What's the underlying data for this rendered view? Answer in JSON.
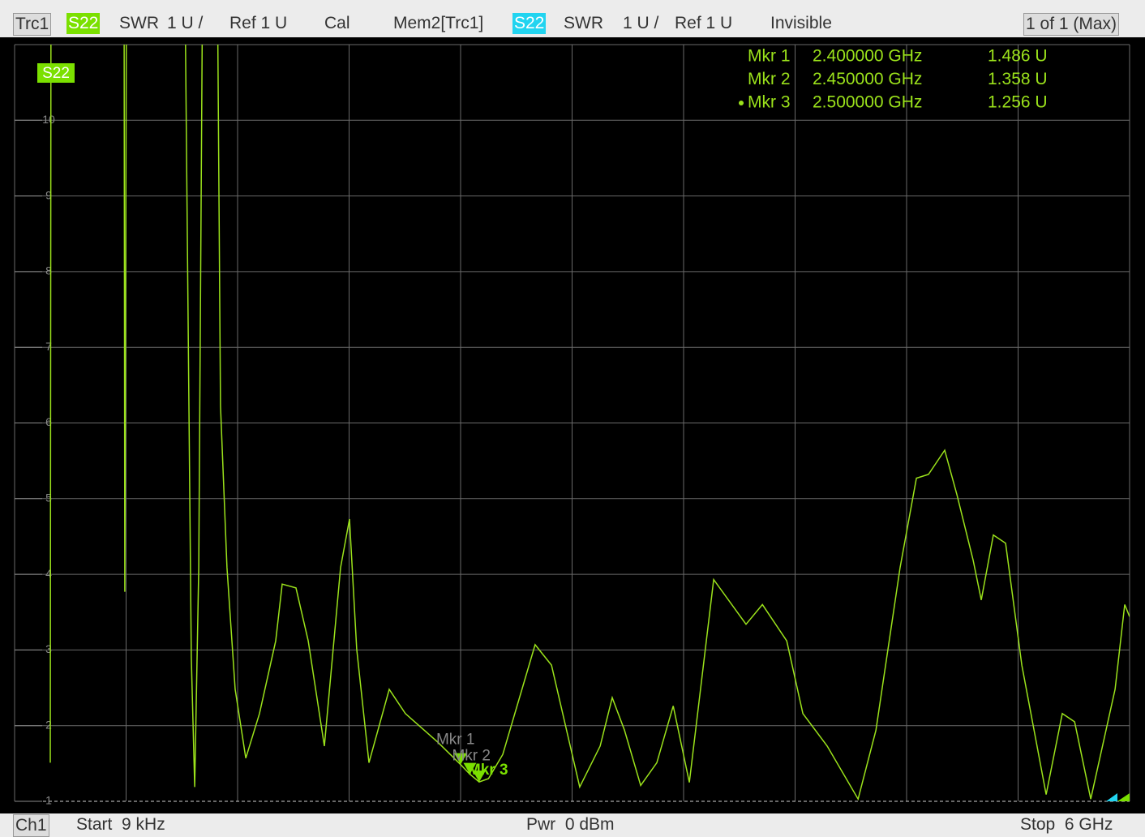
{
  "header": {
    "trace": "Trc1",
    "param": "S22",
    "format": "SWR",
    "scale": "1 U /",
    "ref": "Ref 1 U",
    "cal": "Cal",
    "mem_trace": "Mem2[Trc1]",
    "mem_param": "S22",
    "mem_format": "SWR",
    "mem_scale": "1 U /",
    "mem_ref": "Ref 1 U",
    "mem_state": "Invisible",
    "page": "1 of 1 (Max)"
  },
  "chart_data": {
    "type": "line",
    "x": [
      0.192,
      0.196,
      0.589,
      0.593,
      0.602,
      0.916,
      0.951,
      0.969,
      0.991,
      1.012,
      1.091,
      1.108,
      1.143,
      1.187,
      1.244,
      1.318,
      1.405,
      1.44,
      1.514,
      1.58,
      1.667,
      1.754,
      1.802,
      1.841,
      1.907,
      2.016,
      2.103,
      2.278,
      2.4,
      2.45,
      2.5,
      2.55,
      2.627,
      2.801,
      2.889,
      3.041,
      3.151,
      3.216,
      3.282,
      3.369,
      3.456,
      3.544,
      3.631,
      3.762,
      3.936,
      4.024,
      4.155,
      4.242,
      4.373,
      4.539,
      4.635,
      4.765,
      4.853,
      4.918,
      5.005,
      5.071,
      5.158,
      5.202,
      5.267,
      5.333,
      5.42,
      5.551,
      5.638,
      5.704,
      5.791,
      5.922,
      5.974,
      6.0
    ],
    "series": [
      {
        "name": "S22",
        "color": "#9be21b",
        "values": [
          1.51,
          12,
          12,
          3.77,
          12,
          12,
          2.91,
          1.19,
          4.09,
          12,
          12,
          6.23,
          4.09,
          2.48,
          1.57,
          2.16,
          3.12,
          3.87,
          3.82,
          3.12,
          1.73,
          4.09,
          4.73,
          3.01,
          1.51,
          2.48,
          2.16,
          1.78,
          1.486,
          1.358,
          1.256,
          1.3,
          1.62,
          3.07,
          2.8,
          1.19,
          1.73,
          2.37,
          1.94,
          1.21,
          1.51,
          2.26,
          1.25,
          3.93,
          3.34,
          3.6,
          3.12,
          2.16,
          1.73,
          1.03,
          1.94,
          4.09,
          5.27,
          5.32,
          5.64,
          5.05,
          4.19,
          3.66,
          4.52,
          4.41,
          2.8,
          1.09,
          2.16,
          2.05,
          1.03,
          2.48,
          3.6,
          3.44
        ]
      }
    ],
    "xlim": [
      9e-06,
      6
    ],
    "ylim": [
      1,
      11
    ],
    "yticks": [
      1,
      2,
      3,
      4,
      5,
      6,
      7,
      8,
      9,
      10
    ],
    "grid": true,
    "markers": [
      {
        "name": "Mkr 1",
        "x": 2.4,
        "x_label": "2.400000 GHz",
        "value": 1.486,
        "value_label": "1.486 U"
      },
      {
        "name": "Mkr 2",
        "x": 2.45,
        "x_label": "2.450000 GHz",
        "value": 1.358,
        "value_label": "1.358 U"
      },
      {
        "name": "Mkr 3",
        "x": 2.5,
        "x_label": "2.500000 GHz",
        "value": 1.256,
        "value_label": "1.256 U"
      }
    ]
  },
  "footer": {
    "channel": "Ch1",
    "start": "Start  9 kHz",
    "power": "Pwr  0 dBm",
    "stop": "Stop  6 GHz"
  }
}
